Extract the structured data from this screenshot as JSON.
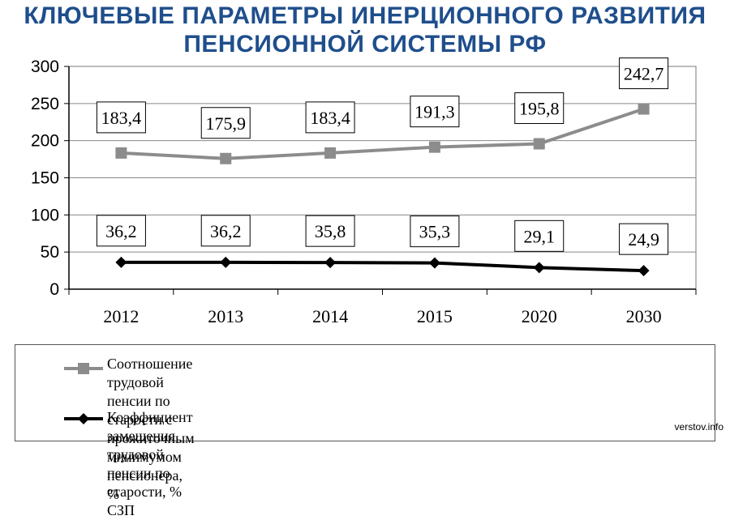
{
  "title_lines": [
    "КЛЮЧЕВЫЕ ПАРАМЕТРЫ ИНЕРЦИОННОГО РАЗВИТИЯ",
    "ПЕНСИОННОЙ СИСТЕМЫ РФ"
  ],
  "chart_data": {
    "type": "line",
    "categories": [
      "2012",
      "2013",
      "2014",
      "2015",
      "2020",
      "2030"
    ],
    "ylim": [
      0,
      300
    ],
    "yticks": [
      0,
      50,
      100,
      150,
      200,
      250,
      300
    ],
    "grid": true,
    "legend_position": "bottom",
    "series": [
      {
        "name": "Соотношение трудовой пенсии по старости с прожиточным минимумом пенсионера, %",
        "values": [
          183.4,
          175.9,
          183.4,
          191.3,
          195.8,
          242.7
        ],
        "labels": [
          "183,4",
          "175,9",
          "183,4",
          "191,3",
          "195,8",
          "242,7"
        ],
        "color": "#8c8c8c",
        "marker": "square"
      },
      {
        "name": "Коэффициент замещения трудовой пенсии по старости, % СЗП",
        "values": [
          36.2,
          36.2,
          35.8,
          35.3,
          29.1,
          24.9
        ],
        "labels": [
          "36,2",
          "36,2",
          "35,8",
          "35,3",
          "29,1",
          "24,9"
        ],
        "color": "#000000",
        "marker": "diamond"
      }
    ]
  },
  "legend": {
    "item1_line1": "Соотношение трудовой пенсии по старости с прожиточным минимумом",
    "item1_line2": "пенсионера, %",
    "item2": "Коэффициент замещения трудовой пенсии по старости, % СЗП"
  },
  "watermark": "verstov.info"
}
